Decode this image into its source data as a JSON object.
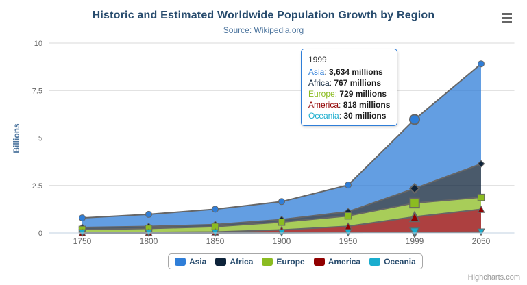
{
  "header": {
    "title": "Historic and Estimated Worldwide Population Growth by Region",
    "subtitle": "Source: Wikipedia.org"
  },
  "icons": {
    "context_menu_icon": "hamburger-bars"
  },
  "chart_data": {
    "type": "area",
    "stacking": "normal",
    "title": "Historic and Estimated Worldwide Population Growth by Region",
    "subtitle": "Source: Wikipedia.org",
    "categories": [
      "1750",
      "1800",
      "1850",
      "1900",
      "1950",
      "1999",
      "2050"
    ],
    "xlabel": "",
    "ylabel": "Billions",
    "unit": "millions",
    "ylim": [
      0,
      10000
    ],
    "yticks": {
      "values": [
        0,
        2500,
        5000,
        7500,
        10000
      ],
      "labels": [
        "0",
        "2.5",
        "5",
        "7.5",
        "10"
      ]
    },
    "grid": true,
    "legend_position": "bottom",
    "hover_category_index": 5,
    "fill_opacity": 0.75,
    "series": [
      {
        "name": "Asia",
        "color": "#2f7ed8",
        "marker": "circle",
        "values": [
          502,
          635,
          809,
          947,
          1402,
          3634,
          5268
        ]
      },
      {
        "name": "Africa",
        "color": "#0d233a",
        "marker": "diamond",
        "values": [
          106,
          107,
          111,
          133,
          221,
          767,
          1766
        ]
      },
      {
        "name": "Europe",
        "color": "#8bbc21",
        "marker": "square",
        "values": [
          163,
          203,
          276,
          408,
          547,
          729,
          628
        ]
      },
      {
        "name": "America",
        "color": "#910000",
        "marker": "triangle",
        "values": [
          18,
          31,
          54,
          156,
          339,
          818,
          1201
        ]
      },
      {
        "name": "Oceania",
        "color": "#1aadce",
        "marker": "triangle-down",
        "values": [
          2,
          2,
          2,
          6,
          13,
          30,
          46
        ]
      }
    ]
  },
  "tooltip": {
    "header": "1999",
    "border_color": "#2f7ed8",
    "rows": [
      {
        "name": "Asia",
        "color": "#2f7ed8",
        "value": "3,634 millions"
      },
      {
        "name": "Africa",
        "color": "#0d233a",
        "value": "767 millions"
      },
      {
        "name": "Europe",
        "color": "#8bbc21",
        "value": "729 millions"
      },
      {
        "name": "America",
        "color": "#910000",
        "value": "818 millions"
      },
      {
        "name": "Oceania",
        "color": "#1aadce",
        "value": "30 millions"
      }
    ]
  },
  "legend": {
    "items": [
      {
        "label": "Asia",
        "color": "#2f7ed8"
      },
      {
        "label": "Africa",
        "color": "#0d233a"
      },
      {
        "label": "Europe",
        "color": "#8bbc21"
      },
      {
        "label": "America",
        "color": "#910000"
      },
      {
        "label": "Oceania",
        "color": "#1aadce"
      }
    ]
  },
  "credits": "Highcharts.com",
  "theme": {
    "title_color": "#274b6d",
    "subtitle_color": "#4d759e",
    "axis_title_color": "#4d759e",
    "axis_label_color": "#666666",
    "legend_text_color": "#274b6d",
    "grid_color": "#d8d8d8",
    "axis_line_color": "#c0d0e0",
    "series_line_color": "#666666",
    "credits_color": "#999999"
  }
}
